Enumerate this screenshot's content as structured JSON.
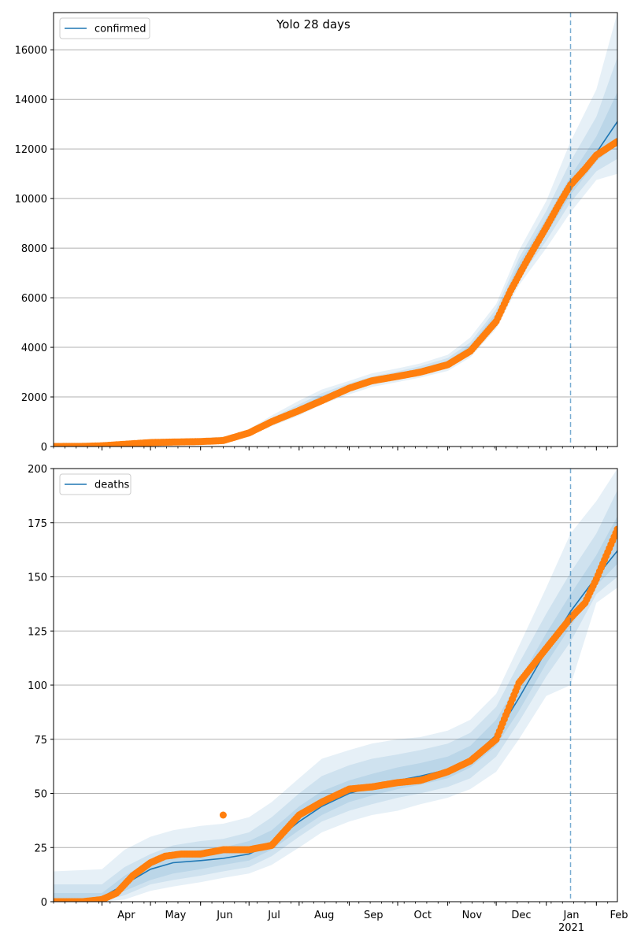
{
  "figure": {
    "title": "Yolo 28 days"
  },
  "chart_data": [
    {
      "type": "line",
      "legend": [
        "confirmed"
      ],
      "legend_position": "top-left",
      "grid": "y",
      "xlim": [
        "2020-03-02",
        "2021-02-14"
      ],
      "ylim": [
        0,
        17500
      ],
      "yticks": [
        0,
        2000,
        4000,
        6000,
        8000,
        10000,
        12000,
        14000,
        16000
      ],
      "forecast_start": "2021-01-16",
      "series": [
        {
          "name": "confirmed",
          "kind": "model",
          "color": "#1f77b4",
          "x": [
            "2020-03-02",
            "2020-04-01",
            "2020-05-01",
            "2020-06-01",
            "2020-06-20",
            "2020-07-01",
            "2020-07-15",
            "2020-08-01",
            "2020-08-15",
            "2020-09-01",
            "2020-09-15",
            "2020-10-01",
            "2020-10-15",
            "2020-11-01",
            "2020-11-15",
            "2020-12-01",
            "2020-12-15",
            "2021-01-01",
            "2021-01-16",
            "2021-02-01",
            "2021-02-14"
          ],
          "y": [
            0,
            30,
            150,
            220,
            300,
            550,
            1000,
            1500,
            1950,
            2350,
            2650,
            2850,
            3050,
            3350,
            3950,
            5200,
            7150,
            8850,
            10450,
            11850,
            13100
          ],
          "bands": [
            {
              "lower": [
                0,
                0,
                80,
                150,
                220,
                420,
                820,
                1250,
                1700,
                2100,
                2400,
                2600,
                2780,
                3050,
                3600,
                4750,
                6500,
                8000,
                9450,
                10750,
                11000
              ],
              "upper": [
                150,
                150,
                300,
                340,
                420,
                700,
                1250,
                1850,
                2300,
                2650,
                2950,
                3150,
                3350,
                3700,
                4400,
                5750,
                7900,
                9900,
                12300,
                14400,
                17500
              ]
            },
            {
              "lower": [
                0,
                0,
                110,
                180,
                250,
                470,
                890,
                1350,
                1800,
                2200,
                2500,
                2700,
                2880,
                3150,
                3750,
                4900,
                6750,
                8300,
                9850,
                11100,
                11600
              ],
              "upper": [
                120,
                120,
                250,
                290,
                380,
                640,
                1150,
                1700,
                2150,
                2550,
                2820,
                3030,
                3240,
                3570,
                4200,
                5550,
                7600,
                9500,
                11500,
                13300,
                15700
              ]
            },
            {
              "lower": [
                0,
                0,
                130,
                200,
                270,
                500,
                940,
                1420,
                1880,
                2280,
                2570,
                2780,
                2970,
                3250,
                3850,
                5050,
                6950,
                8550,
                10150,
                11500,
                12200
              ],
              "upper": [
                80,
                80,
                200,
                260,
                340,
                600,
                1080,
                1600,
                2050,
                2450,
                2740,
                2940,
                3150,
                3460,
                4080,
                5380,
                7380,
                9200,
                10900,
                12500,
                14300
              ]
            }
          ]
        },
        {
          "name": "observed",
          "kind": "points",
          "color": "#ff7f0e",
          "x": [
            "2020-03-02",
            "2020-03-20",
            "2020-04-01",
            "2020-04-15",
            "2020-05-01",
            "2020-05-15",
            "2020-06-01",
            "2020-06-15",
            "2020-07-01",
            "2020-07-15",
            "2020-08-01",
            "2020-08-15",
            "2020-09-01",
            "2020-09-15",
            "2020-10-01",
            "2020-10-15",
            "2020-11-01",
            "2020-11-15",
            "2020-12-01",
            "2020-12-10",
            "2020-12-20",
            "2021-01-01",
            "2021-01-10",
            "2021-01-16",
            "2021-01-25",
            "2021-02-01",
            "2021-02-14"
          ],
          "y": [
            0,
            5,
            30,
            90,
            160,
            180,
            200,
            240,
            550,
            1000,
            1450,
            1850,
            2350,
            2650,
            2830,
            3000,
            3300,
            3850,
            5050,
            6300,
            7500,
            8850,
            9900,
            10550,
            11200,
            11750,
            12300
          ]
        }
      ]
    },
    {
      "type": "line",
      "legend": [
        "deaths"
      ],
      "legend_position": "top-left",
      "grid": "y",
      "xlim": [
        "2020-03-02",
        "2021-02-14"
      ],
      "ylim": [
        0,
        200
      ],
      "yticks": [
        0,
        25,
        50,
        75,
        100,
        125,
        150,
        175,
        200
      ],
      "forecast_start": "2021-01-16",
      "x_tick_labels": [
        "Apr",
        "May",
        "Jun",
        "Jul",
        "Aug",
        "Sep",
        "Oct",
        "Nov",
        "Dec",
        "Jan",
        "Feb"
      ],
      "x_year_label": "2021",
      "series": [
        {
          "name": "deaths",
          "kind": "model",
          "color": "#1f77b4",
          "x": [
            "2020-03-02",
            "2020-04-01",
            "2020-04-15",
            "2020-05-01",
            "2020-05-15",
            "2020-06-01",
            "2020-06-15",
            "2020-07-01",
            "2020-07-15",
            "2020-08-01",
            "2020-08-15",
            "2020-09-01",
            "2020-09-15",
            "2020-10-01",
            "2020-10-15",
            "2020-11-01",
            "2020-11-15",
            "2020-12-01",
            "2020-12-15",
            "2021-01-01",
            "2021-01-16",
            "2021-02-01",
            "2021-02-14"
          ],
          "y": [
            0,
            2,
            8,
            15,
            18,
            19,
            20,
            22,
            27,
            37,
            44,
            50,
            53,
            56,
            58,
            61,
            66,
            77,
            94,
            116,
            134,
            150,
            162
          ],
          "bands": [
            {
              "lower": [
                0,
                0,
                1,
                5,
                7,
                9,
                11,
                13,
                17,
                25,
                32,
                37,
                40,
                42,
                45,
                48,
                52,
                60,
                75,
                95,
                100,
                138,
                145
              ],
              "upper": [
                14,
                15,
                24,
                30,
                33,
                35,
                36,
                39,
                46,
                57,
                66,
                70,
                73,
                75,
                76,
                79,
                84,
                96,
                118,
                145,
                170,
                185,
                200
              ]
            },
            {
              "lower": [
                0,
                0,
                3,
                8,
                10,
                12,
                14,
                16,
                21,
                30,
                37,
                42,
                45,
                48,
                50,
                53,
                57,
                67,
                83,
                104,
                120,
                142,
                150
              ],
              "upper": [
                8,
                8,
                16,
                22,
                26,
                28,
                29,
                32,
                39,
                50,
                58,
                63,
                66,
                68,
                70,
                73,
                78,
                90,
                110,
                133,
                152,
                170,
                190
              ]
            },
            {
              "lower": [
                0,
                1,
                5,
                10,
                13,
                15,
                17,
                19,
                24,
                33,
                40,
                46,
                49,
                52,
                54,
                57,
                62,
                72,
                88,
                110,
                127,
                146,
                156
              ],
              "upper": [
                4,
                4,
                12,
                19,
                22,
                24,
                25,
                28,
                33,
                44,
                51,
                56,
                59,
                62,
                64,
                67,
                72,
                84,
                102,
                124,
                142,
                160,
                178
              ]
            }
          ]
        },
        {
          "name": "observed",
          "kind": "points",
          "color": "#ff7f0e",
          "x": [
            "2020-03-02",
            "2020-03-20",
            "2020-04-01",
            "2020-04-10",
            "2020-04-20",
            "2020-05-01",
            "2020-05-10",
            "2020-05-20",
            "2020-06-01",
            "2020-06-15",
            "2020-07-01",
            "2020-07-15",
            "2020-08-01",
            "2020-08-15",
            "2020-09-01",
            "2020-09-15",
            "2020-10-01",
            "2020-10-15",
            "2020-11-01",
            "2020-11-15",
            "2020-12-01",
            "2020-12-15",
            "2021-01-01",
            "2021-01-16",
            "2021-01-25",
            "2021-02-01",
            "2021-02-14"
          ],
          "y": [
            0,
            0,
            1,
            4,
            12,
            18,
            21,
            22,
            22,
            24,
            24,
            26,
            40,
            46,
            52,
            53,
            55,
            56,
            60,
            65,
            75,
            101,
            117,
            131,
            138,
            149,
            172
          ],
          "outliers": [
            {
              "x": "2020-06-15",
              "y": 40
            }
          ]
        }
      ]
    }
  ]
}
